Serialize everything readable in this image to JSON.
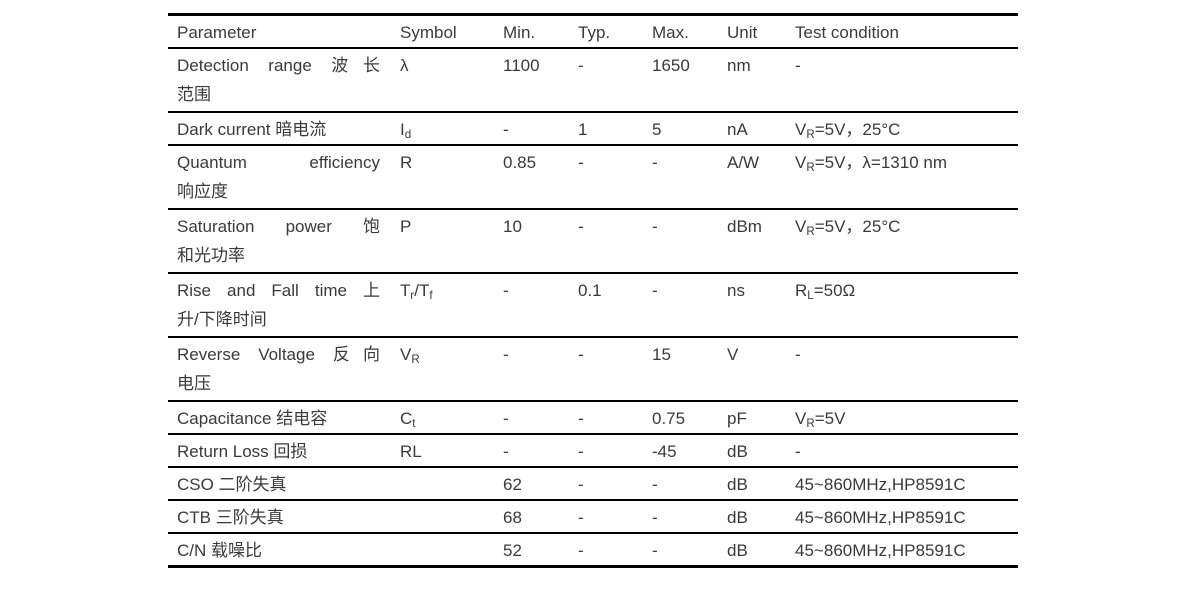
{
  "page": {
    "background": "#ffffff",
    "text_color": "#3a3a3a",
    "rule_color": "#000000"
  },
  "table": {
    "columns": [
      "Parameter",
      "Symbol",
      "Min.",
      "Typ.",
      "Max.",
      "Unit",
      "Test condition"
    ],
    "subscript_marker": "~",
    "rows": [
      {
        "parameter_lines": [
          "Detection range 波长",
          "范围"
        ],
        "symbol": "λ",
        "min": "1100",
        "typ": "-",
        "max": "1650",
        "unit": "nm",
        "test": "-"
      },
      {
        "parameter_lines": [
          "Dark current 暗电流"
        ],
        "symbol": "I~d~",
        "min": "-",
        "typ": "1",
        "max": "5",
        "unit": "nA",
        "test": "V~R~=5V，25°C"
      },
      {
        "parameter_lines": [
          "Quantum efficiency",
          "响应度"
        ],
        "symbol": "R",
        "min": "0.85",
        "typ": "-",
        "max": "-",
        "unit": "A/W",
        "test": "V~R~=5V，λ=1310 nm"
      },
      {
        "parameter_lines": [
          "Saturation power 饱",
          "和光功率"
        ],
        "symbol": "P",
        "min": "10",
        "typ": "-",
        "max": "-",
        "unit": "dBm",
        "test": "V~R~=5V，25°C"
      },
      {
        "parameter_lines": [
          "Rise and Fall time 上",
          "升/下降时间"
        ],
        "symbol": "T~r~/T~f~",
        "min": "-",
        "typ": "0.1",
        "max": "-",
        "unit": "ns",
        "test": "R~L~=50Ω"
      },
      {
        "parameter_lines": [
          "Reverse Voltage 反向",
          "电压"
        ],
        "symbol": "V~R~",
        "min": "-",
        "typ": "-",
        "max": "15",
        "unit": "V",
        "test": "-"
      },
      {
        "parameter_lines": [
          "Capacitance 结电容"
        ],
        "symbol": "C~t~",
        "min": "-",
        "typ": "-",
        "max": "0.75",
        "unit": "pF",
        "test": "V~R~=5V"
      },
      {
        "parameter_lines": [
          "Return Loss 回损"
        ],
        "symbol": "RL",
        "min": "-",
        "typ": "-",
        "max": "-45",
        "unit": "dB",
        "test": "-"
      },
      {
        "parameter_lines": [
          "CSO 二阶失真"
        ],
        "symbol": "",
        "min": "62",
        "typ": "-",
        "max": "-",
        "unit": "dB",
        "test": "45~~860MHz,HP8591C"
      },
      {
        "parameter_lines": [
          "CTB 三阶失真"
        ],
        "symbol": "",
        "min": "68",
        "typ": "-",
        "max": "-",
        "unit": "dB",
        "test": "45~~860MHz,HP8591C"
      },
      {
        "parameter_lines": [
          "C/N 载噪比"
        ],
        "symbol": "",
        "min": "52",
        "typ": "-",
        "max": "-",
        "unit": "dB",
        "test": "45~~860MHz,HP8591C"
      }
    ]
  }
}
